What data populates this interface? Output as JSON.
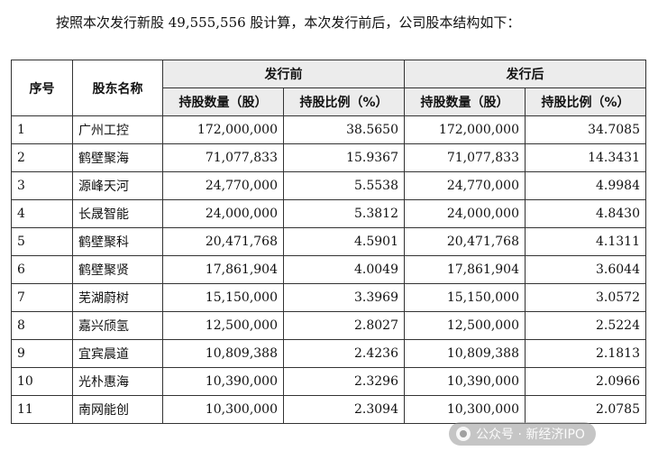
{
  "intro_text": "按照本次发行新股 49,555,556 股计算，本次发行前后，公司股本结构如下：",
  "table": {
    "col_no": "序号",
    "col_name": "股东名称",
    "group_before": "发行前",
    "group_after": "发行后",
    "sub_shares": "持股数量（股）",
    "sub_ratio": "持股比例（%）",
    "rows": [
      {
        "no": "1",
        "name": "广州工控",
        "before_shares": "172,000,000",
        "before_ratio": "38.5650",
        "after_shares": "172,000,000",
        "after_ratio": "34.7085"
      },
      {
        "no": "2",
        "name": "鹤壁聚海",
        "before_shares": "71,077,833",
        "before_ratio": "15.9367",
        "after_shares": "71,077,833",
        "after_ratio": "14.3431"
      },
      {
        "no": "3",
        "name": "源峰天河",
        "before_shares": "24,770,000",
        "before_ratio": "5.5538",
        "after_shares": "24,770,000",
        "after_ratio": "4.9984"
      },
      {
        "no": "4",
        "name": "长晟智能",
        "before_shares": "24,000,000",
        "before_ratio": "5.3812",
        "after_shares": "24,000,000",
        "after_ratio": "4.8430"
      },
      {
        "no": "5",
        "name": "鹤壁聚科",
        "before_shares": "20,471,768",
        "before_ratio": "4.5901",
        "after_shares": "20,471,768",
        "after_ratio": "4.1311"
      },
      {
        "no": "6",
        "name": "鹤壁聚贤",
        "before_shares": "17,861,904",
        "before_ratio": "4.0049",
        "after_shares": "17,861,904",
        "after_ratio": "3.6044"
      },
      {
        "no": "7",
        "name": "芜湖蔚树",
        "before_shares": "15,150,000",
        "before_ratio": "3.3969",
        "after_shares": "15,150,000",
        "after_ratio": "3.0572"
      },
      {
        "no": "8",
        "name": "嘉兴颀氢",
        "before_shares": "12,500,000",
        "before_ratio": "2.8027",
        "after_shares": "12,500,000",
        "after_ratio": "2.5224"
      },
      {
        "no": "9",
        "name": "宜宾晨道",
        "before_shares": "10,809,388",
        "before_ratio": "2.4236",
        "after_shares": "10,809,388",
        "after_ratio": "2.1813"
      },
      {
        "no": "10",
        "name": "光朴惠海",
        "before_shares": "10,390,000",
        "before_ratio": "2.3296",
        "after_shares": "10,390,000",
        "after_ratio": "2.0966"
      },
      {
        "no": "11",
        "name": "南网能创",
        "before_shares": "10,300,000",
        "before_ratio": "2.3094",
        "after_shares": "10,300,000",
        "after_ratio": "2.0785"
      }
    ]
  },
  "watermark": {
    "text": "公众号 · 新经济IPO",
    "icon": "wechat-channel-icon"
  }
}
